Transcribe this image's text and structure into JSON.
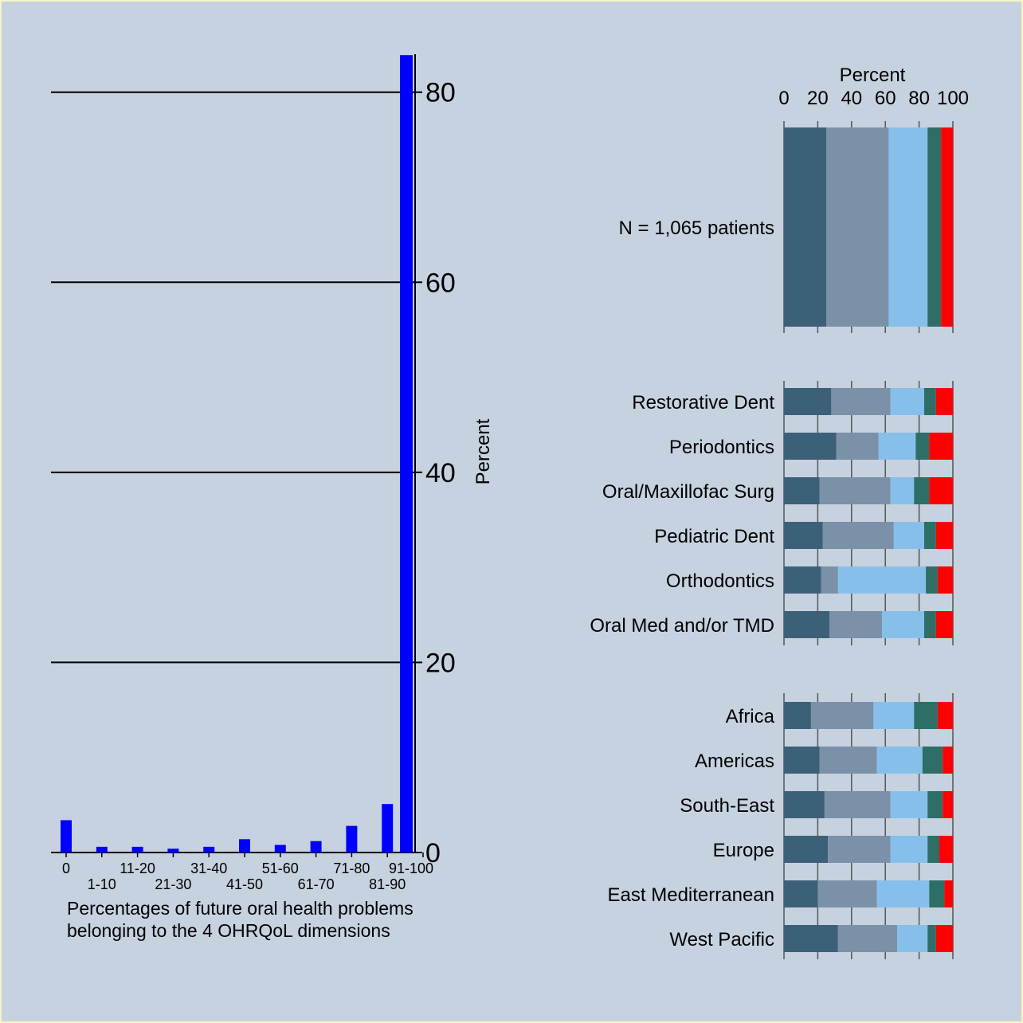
{
  "colors": {
    "background": "#c6d2df",
    "border": "#f4f4c6",
    "histogram_bar": "#0000ff",
    "segment_1": "#3d6079",
    "segment_2": "#7a91a8",
    "segment_3": "#86c0ea",
    "segment_4": "#2e6e66",
    "segment_5": "#ff0000"
  },
  "chart_data": [
    {
      "type": "bar",
      "xlabel": "Percentages of future oral health problems\nbelonging to the 4 OHRQoL dimensions",
      "ylabel": "Percent",
      "ylim": [
        0,
        84
      ],
      "yticks": [
        0,
        20,
        40,
        60,
        80
      ],
      "grid": true,
      "categories": [
        "0",
        "1-10",
        "11-20",
        "21-30",
        "31-40",
        "41-50",
        "51-60",
        "61-70",
        "71-80",
        "81-90",
        "91-100"
      ],
      "values": [
        3.4,
        0.6,
        0.6,
        0.4,
        0.6,
        1.4,
        0.8,
        1.2,
        2.8,
        5.1,
        83.9
      ]
    },
    {
      "type": "bar",
      "orientation": "horizontal",
      "stacked": true,
      "xlabel": "Percent",
      "xlim": [
        0,
        100
      ],
      "xticks": [
        0,
        20,
        40,
        60,
        80,
        100
      ],
      "panels": [
        {
          "categories": [
            "N = 1,065 patients"
          ],
          "series": [
            {
              "values": [
                25
              ]
            },
            {
              "values": [
                37
              ]
            },
            {
              "values": [
                23
              ]
            },
            {
              "values": [
                8
              ]
            },
            {
              "values": [
                7
              ]
            }
          ]
        },
        {
          "categories": [
            "Restorative Dent",
            "Periodontics",
            "Oral/Maxillofac Surg",
            "Pediatric Dent",
            "Orthodontics",
            "Oral Med and/or TMD"
          ],
          "series": [
            {
              "values": [
                28,
                31,
                21,
                23,
                22,
                27
              ]
            },
            {
              "values": [
                35,
                25,
                42,
                42,
                10,
                31
              ]
            },
            {
              "values": [
                20,
                22,
                14,
                18,
                52,
                25
              ]
            },
            {
              "values": [
                7,
                8,
                9,
                7,
                7,
                7
              ]
            },
            {
              "values": [
                10,
                14,
                14,
                10,
                9,
                10
              ]
            }
          ]
        },
        {
          "categories": [
            "Africa",
            "Americas",
            "South-East",
            "Europe",
            "East Mediterranean",
            "West Pacific"
          ],
          "series": [
            {
              "values": [
                16,
                21,
                24,
                26,
                20,
                32
              ]
            },
            {
              "values": [
                37,
                34,
                39,
                37,
                35,
                35
              ]
            },
            {
              "values": [
                24,
                27,
                22,
                22,
                31,
                18
              ]
            },
            {
              "values": [
                14,
                12,
                9,
                7,
                9,
                5
              ]
            },
            {
              "values": [
                9,
                6,
                6,
                8,
                5,
                10
              ]
            }
          ]
        }
      ]
    }
  ]
}
